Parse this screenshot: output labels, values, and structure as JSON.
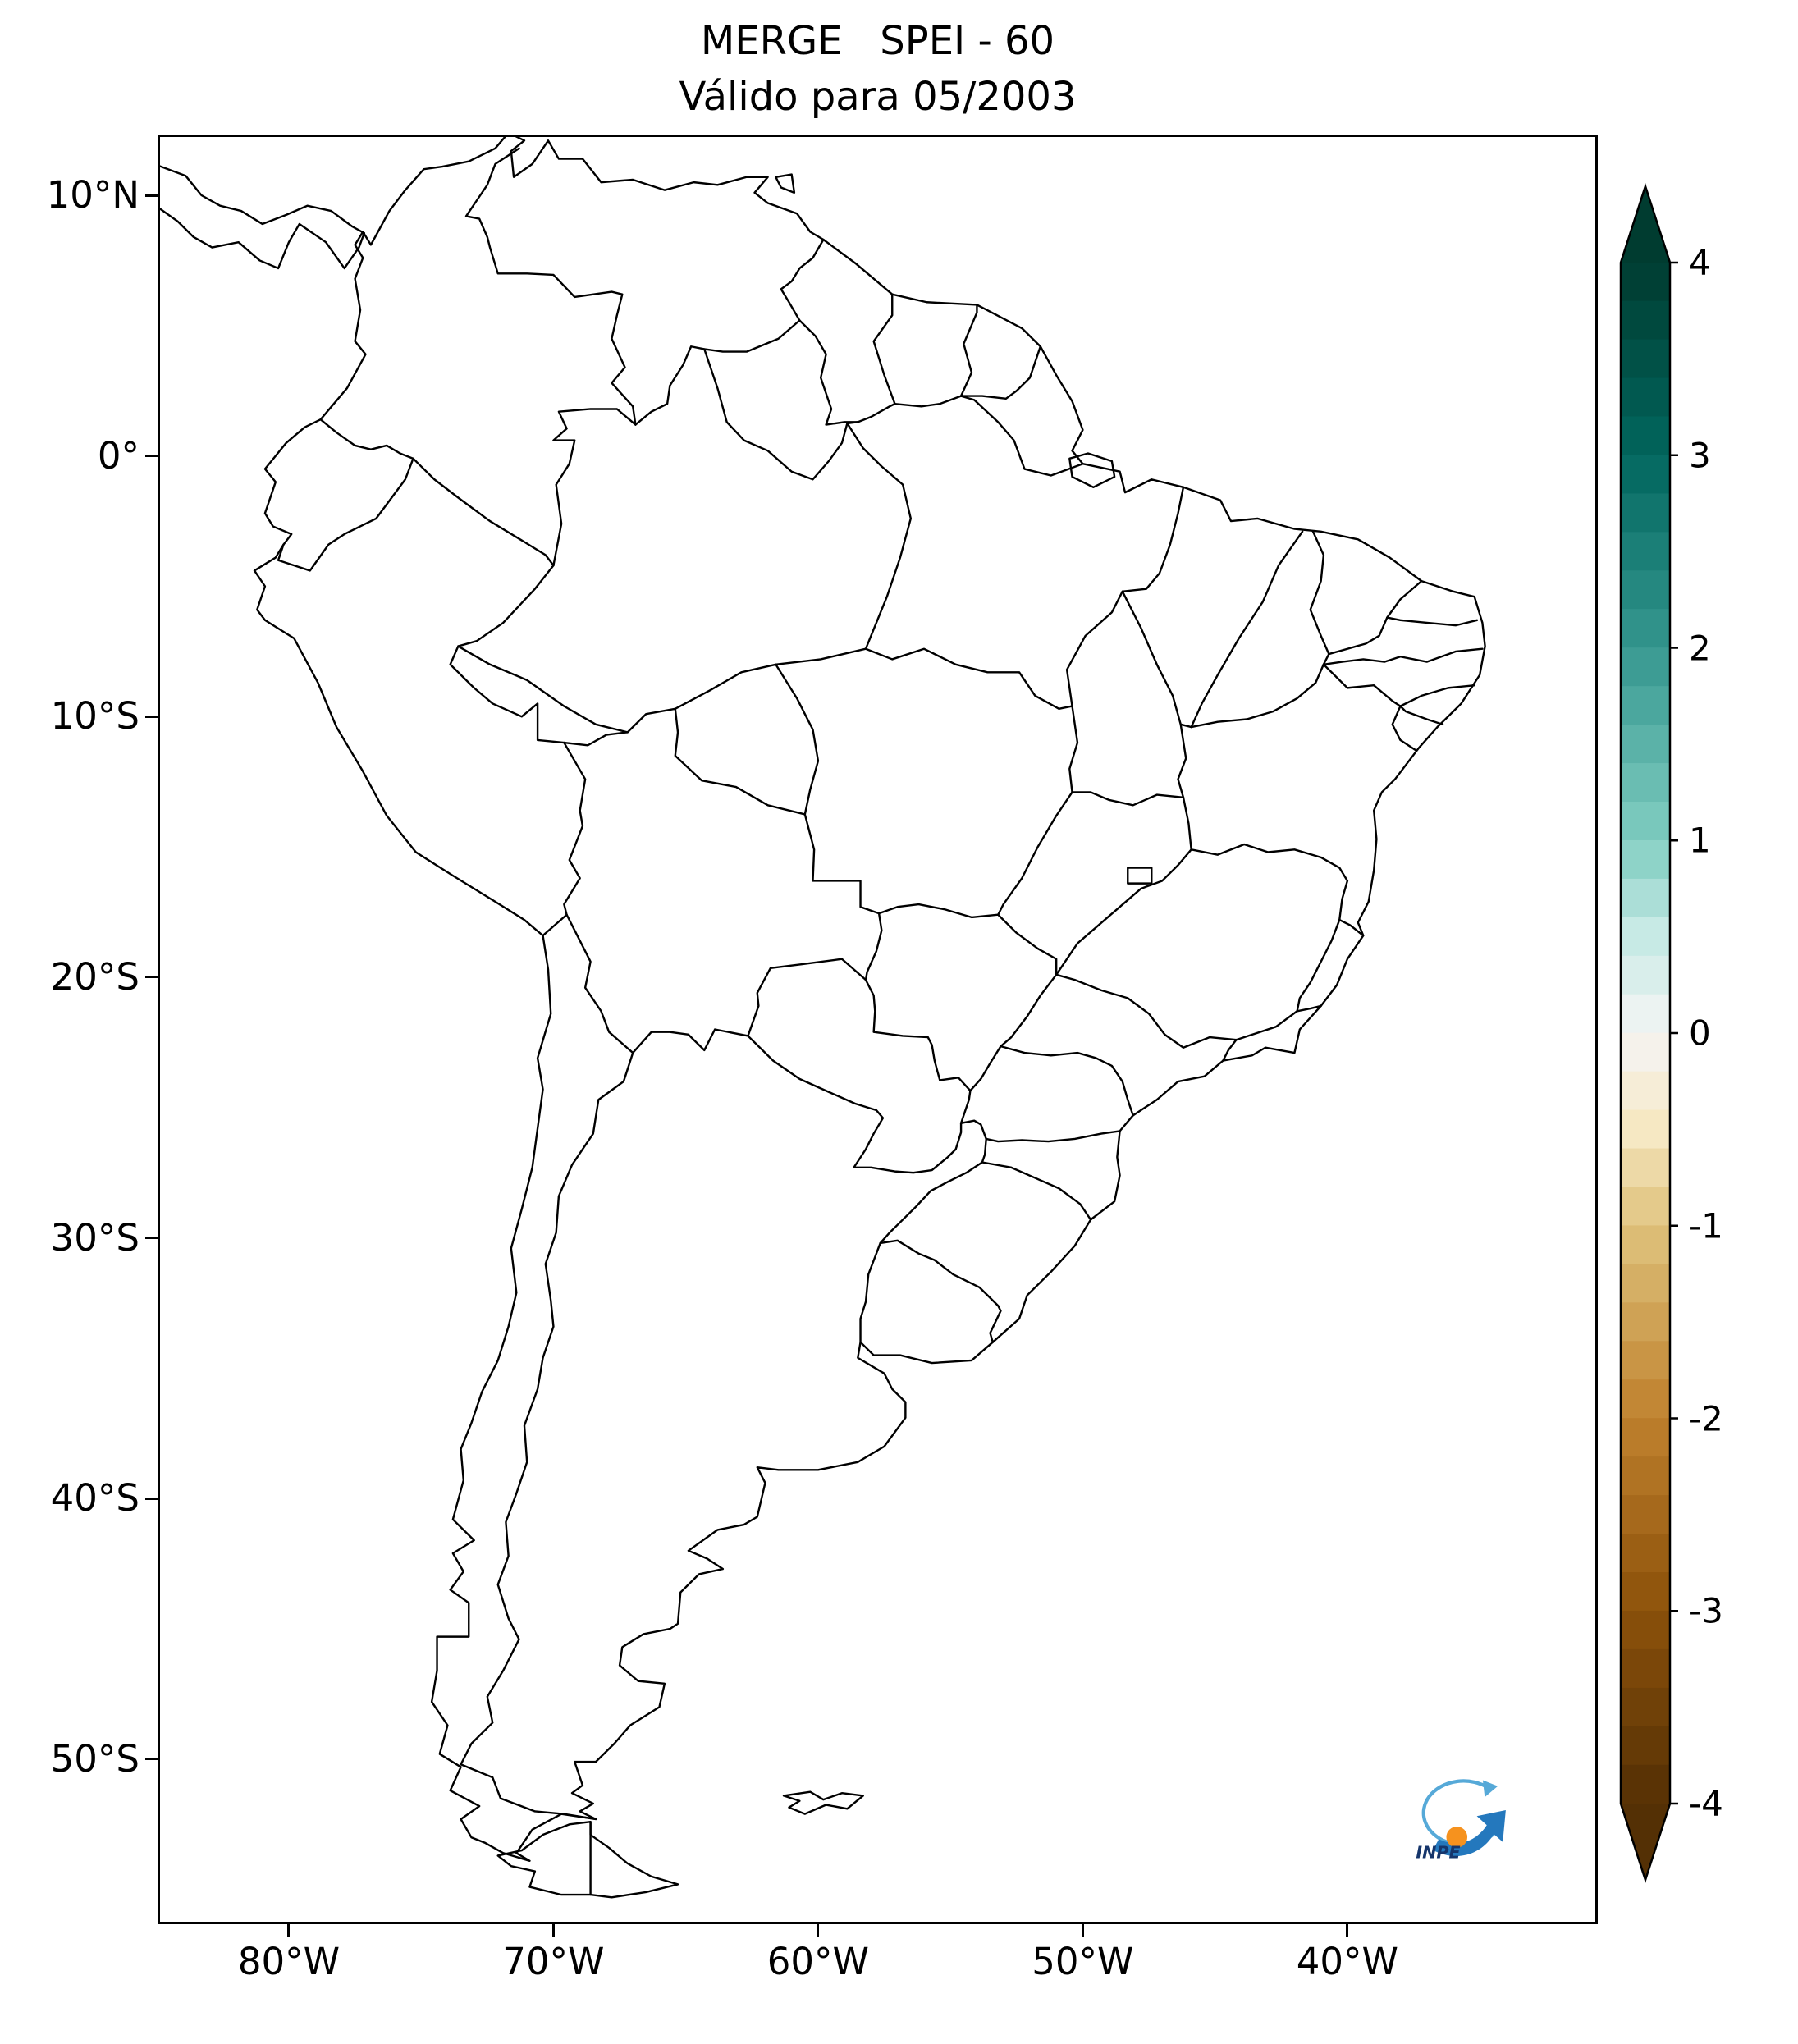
{
  "figure": {
    "title_line1": "MERGE   SPEI - 60",
    "title_line2": "Válido para 05/2003"
  },
  "axes": {
    "x_tick_labels": [
      "80°W",
      "70°W",
      "60°W",
      "50°W",
      "40°W"
    ],
    "y_tick_labels": [
      "10°N",
      "0°",
      "10°S",
      "20°S",
      "30°S",
      "40°S",
      "50°S"
    ]
  },
  "colorbar": {
    "tick_labels": [
      "4",
      "3",
      "2",
      "1",
      "0",
      "-1",
      "-2",
      "-3",
      "-4"
    ],
    "colormap": "BrBG",
    "extend": "both",
    "anchors": [
      {
        "value": -4,
        "color": "#543005"
      },
      {
        "value": -3,
        "color": "#8c510a"
      },
      {
        "value": -2,
        "color": "#bf812d"
      },
      {
        "value": -1,
        "color": "#dfc27d"
      },
      {
        "value": -0.5,
        "color": "#f6e8c3"
      },
      {
        "value": 0,
        "color": "#f5f5f5"
      },
      {
        "value": 0.5,
        "color": "#c7eae5"
      },
      {
        "value": 1,
        "color": "#80cdc1"
      },
      {
        "value": 2,
        "color": "#35978f"
      },
      {
        "value": 3,
        "color": "#01665e"
      },
      {
        "value": 4,
        "color": "#003c30"
      }
    ]
  },
  "logo": {
    "text": "INPE",
    "arrow_blue": "#2478bd",
    "orbit_blue": "#56a9d8",
    "ball_orange": "#f6921e",
    "text_navy": "#15356b"
  }
}
